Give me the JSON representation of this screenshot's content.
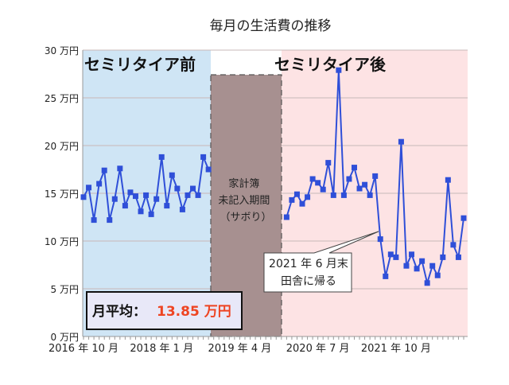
{
  "chart_data": {
    "type": "line",
    "title": "毎月の生活費の推移",
    "ylim": [
      0,
      30
    ],
    "y_ticks": [
      0,
      5,
      10,
      15,
      20,
      25,
      30
    ],
    "y_tick_unit": "万円",
    "y_tick_labels": [
      "0 万円",
      "5 万円",
      "10 万円",
      "15 万円",
      "20 万円",
      "25 万円",
      "30 万円"
    ],
    "x_range": [
      "2016-10",
      "2022-11"
    ],
    "x_tick_labels": [
      {
        "month": "2016-10",
        "label": "2016 年 10 月"
      },
      {
        "month": "2018-01",
        "label": "2018 年 1 月"
      },
      {
        "month": "2019-04",
        "label": "2019 年 4 月"
      },
      {
        "month": "2020-07",
        "label": "2020 年 7 月"
      },
      {
        "month": "2021-10",
        "label": "2021 年 10 月"
      }
    ],
    "grid": "horizontal",
    "series": [
      {
        "segment": "before",
        "start": "2016-10",
        "values": [
          14.6,
          15.6,
          12.2,
          16.0,
          17.4,
          12.2,
          14.4,
          17.6,
          13.7,
          15.1,
          14.7,
          13.1,
          14.8,
          12.8,
          14.4,
          18.8,
          13.7,
          16.9,
          15.5,
          13.3,
          14.8,
          15.5,
          14.8,
          18.8,
          17.5
        ]
      },
      {
        "segment": "after",
        "start": "2020-01",
        "values": [
          12.5,
          14.3,
          14.9,
          13.9,
          14.6,
          16.5,
          16.1,
          15.4,
          18.2,
          14.8,
          27.9,
          14.8,
          16.5,
          17.7,
          15.5,
          15.9,
          14.8,
          16.8,
          10.2,
          6.3,
          8.6,
          8.3,
          20.4,
          7.4,
          8.6,
          7.1,
          7.9,
          5.6,
          7.4,
          6.4,
          8.3,
          16.4,
          9.6,
          8.3,
          12.4
        ]
      }
    ],
    "series_color": "#2f4fd8",
    "regions": [
      {
        "label": "セミリタイア前",
        "from": "2016-10",
        "to": "2018-10",
        "color": "#cfe5f5"
      },
      {
        "label": "家計簿\n未記入期間\n（サボり）",
        "from": "2018-11",
        "to": "2019-12",
        "color": "#a79090"
      },
      {
        "label": "セミリタイア後",
        "from": "2020-01",
        "to": "2022-11",
        "color": "#fde3e4"
      }
    ],
    "gap_label_lines": [
      "家計簿",
      "未記入期間",
      "（サボり）"
    ],
    "annotation": {
      "lines": [
        "2021 年 6 月末",
        "田舎に帰る"
      ],
      "month": "2021-06"
    },
    "average_box": {
      "label": "月平均：",
      "value": "13.85 万円",
      "value_color": "#ee4422"
    }
  }
}
